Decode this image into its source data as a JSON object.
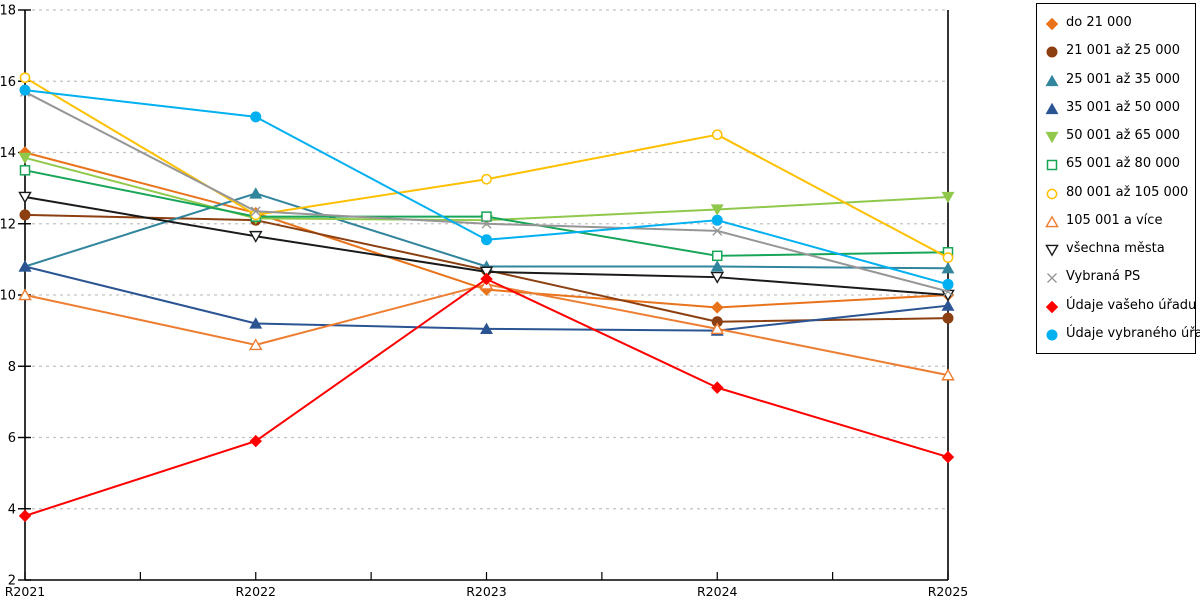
{
  "chart_data": {
    "type": "line",
    "title": "",
    "xlabel": "",
    "ylabel": "",
    "categories": [
      "R2021",
      "R2022",
      "R2023",
      "R2024",
      "R2025"
    ],
    "ylim": [
      2,
      18
    ],
    "ytick_step": 2,
    "grid": "horizontal-dashed",
    "grid_color": "#c3c3c3",
    "axis_color": "#000000",
    "legend_position": "right",
    "series": [
      {
        "name": "do 21 000",
        "color": "#e8731b",
        "marker": "diamond",
        "fill": "filled",
        "values": [
          14.0,
          12.3,
          10.15,
          9.65,
          10.0
        ]
      },
      {
        "name": "21 001 až 25 000",
        "color": "#8c3f10",
        "marker": "circle",
        "fill": "filled",
        "values": [
          12.25,
          12.1,
          10.7,
          9.25,
          9.35
        ]
      },
      {
        "name": "25 001 až 35 000",
        "color": "#31859c",
        "marker": "triangle-up",
        "fill": "filled",
        "values": [
          10.8,
          12.85,
          10.8,
          10.8,
          10.75
        ]
      },
      {
        "name": "35 001 až 50 000",
        "color": "#2b5492",
        "marker": "triangle-up",
        "fill": "filled",
        "values": [
          10.8,
          9.2,
          9.05,
          9.0,
          9.7
        ]
      },
      {
        "name": "50 001 až 65 000",
        "color": "#90c84c",
        "marker": "triangle-down",
        "fill": "filled",
        "values": [
          13.85,
          12.15,
          12.1,
          12.4,
          12.75
        ]
      },
      {
        "name": "65 001 až 80 000",
        "color": "#17a558",
        "marker": "square",
        "fill": "open",
        "values": [
          13.5,
          12.2,
          12.2,
          11.1,
          11.2
        ]
      },
      {
        "name": "80 001 až 105 000",
        "color": "#ffc000",
        "marker": "circle",
        "fill": "open",
        "values": [
          16.1,
          12.25,
          13.25,
          14.5,
          11.05
        ]
      },
      {
        "name": "105 001 a více",
        "color": "#ed7d31",
        "marker": "triangle-up",
        "fill": "open",
        "values": [
          10.0,
          8.6,
          10.3,
          9.05,
          7.75
        ]
      },
      {
        "name": "všechna města",
        "color": "#1a1a1a",
        "marker": "triangle-down",
        "fill": "open",
        "values": [
          12.75,
          11.65,
          10.65,
          10.5,
          10.0
        ]
      },
      {
        "name": "Vybraná PS",
        "color": "#969696",
        "marker": "x",
        "fill": "open",
        "values": [
          15.7,
          12.35,
          12.0,
          11.8,
          10.1
        ]
      },
      {
        "name": "Údaje vašeho úřadu",
        "color": "#ff0000",
        "marker": "diamond",
        "fill": "filled",
        "values": [
          3.8,
          5.9,
          10.45,
          7.4,
          5.45
        ]
      },
      {
        "name": "Údaje vybraného úřadu",
        "color": "#00b0f0",
        "marker": "circle",
        "fill": "filled",
        "values": [
          15.75,
          15.0,
          11.55,
          12.1,
          10.3
        ]
      }
    ]
  }
}
